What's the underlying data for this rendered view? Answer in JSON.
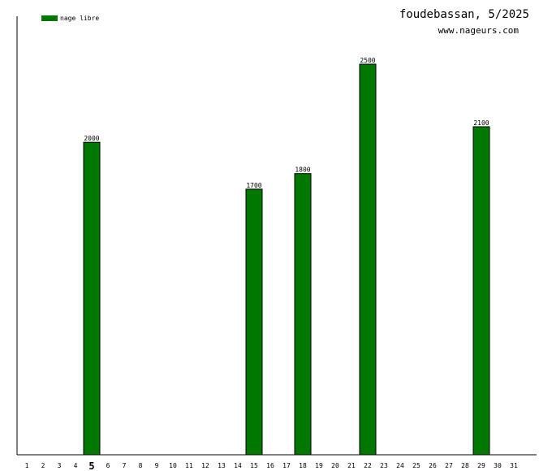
{
  "title": "foudebassan, 5/2025",
  "site": "www.nageurs.com",
  "legend": {
    "label": "nage libre",
    "color": "#007800"
  },
  "chart_data": {
    "type": "bar",
    "title": "foudebassan, 5/2025",
    "xlabel": "",
    "ylabel": "",
    "ylim": [
      0,
      2500
    ],
    "legend_position": "top-left",
    "grid": false,
    "highlighted_category": "5",
    "categories": [
      "1",
      "2",
      "3",
      "4",
      "5",
      "6",
      "7",
      "8",
      "9",
      "10",
      "11",
      "12",
      "13",
      "14",
      "15",
      "16",
      "17",
      "18",
      "19",
      "20",
      "21",
      "22",
      "23",
      "24",
      "25",
      "26",
      "27",
      "28",
      "29",
      "30",
      "31"
    ],
    "series": [
      {
        "name": "nage libre",
        "color": "#007800",
        "values": [
          0,
          0,
          0,
          0,
          2000,
          0,
          0,
          0,
          0,
          0,
          0,
          0,
          0,
          0,
          1700,
          0,
          0,
          1800,
          0,
          0,
          0,
          2500,
          0,
          0,
          0,
          0,
          0,
          0,
          2100,
          0,
          0
        ]
      }
    ]
  }
}
